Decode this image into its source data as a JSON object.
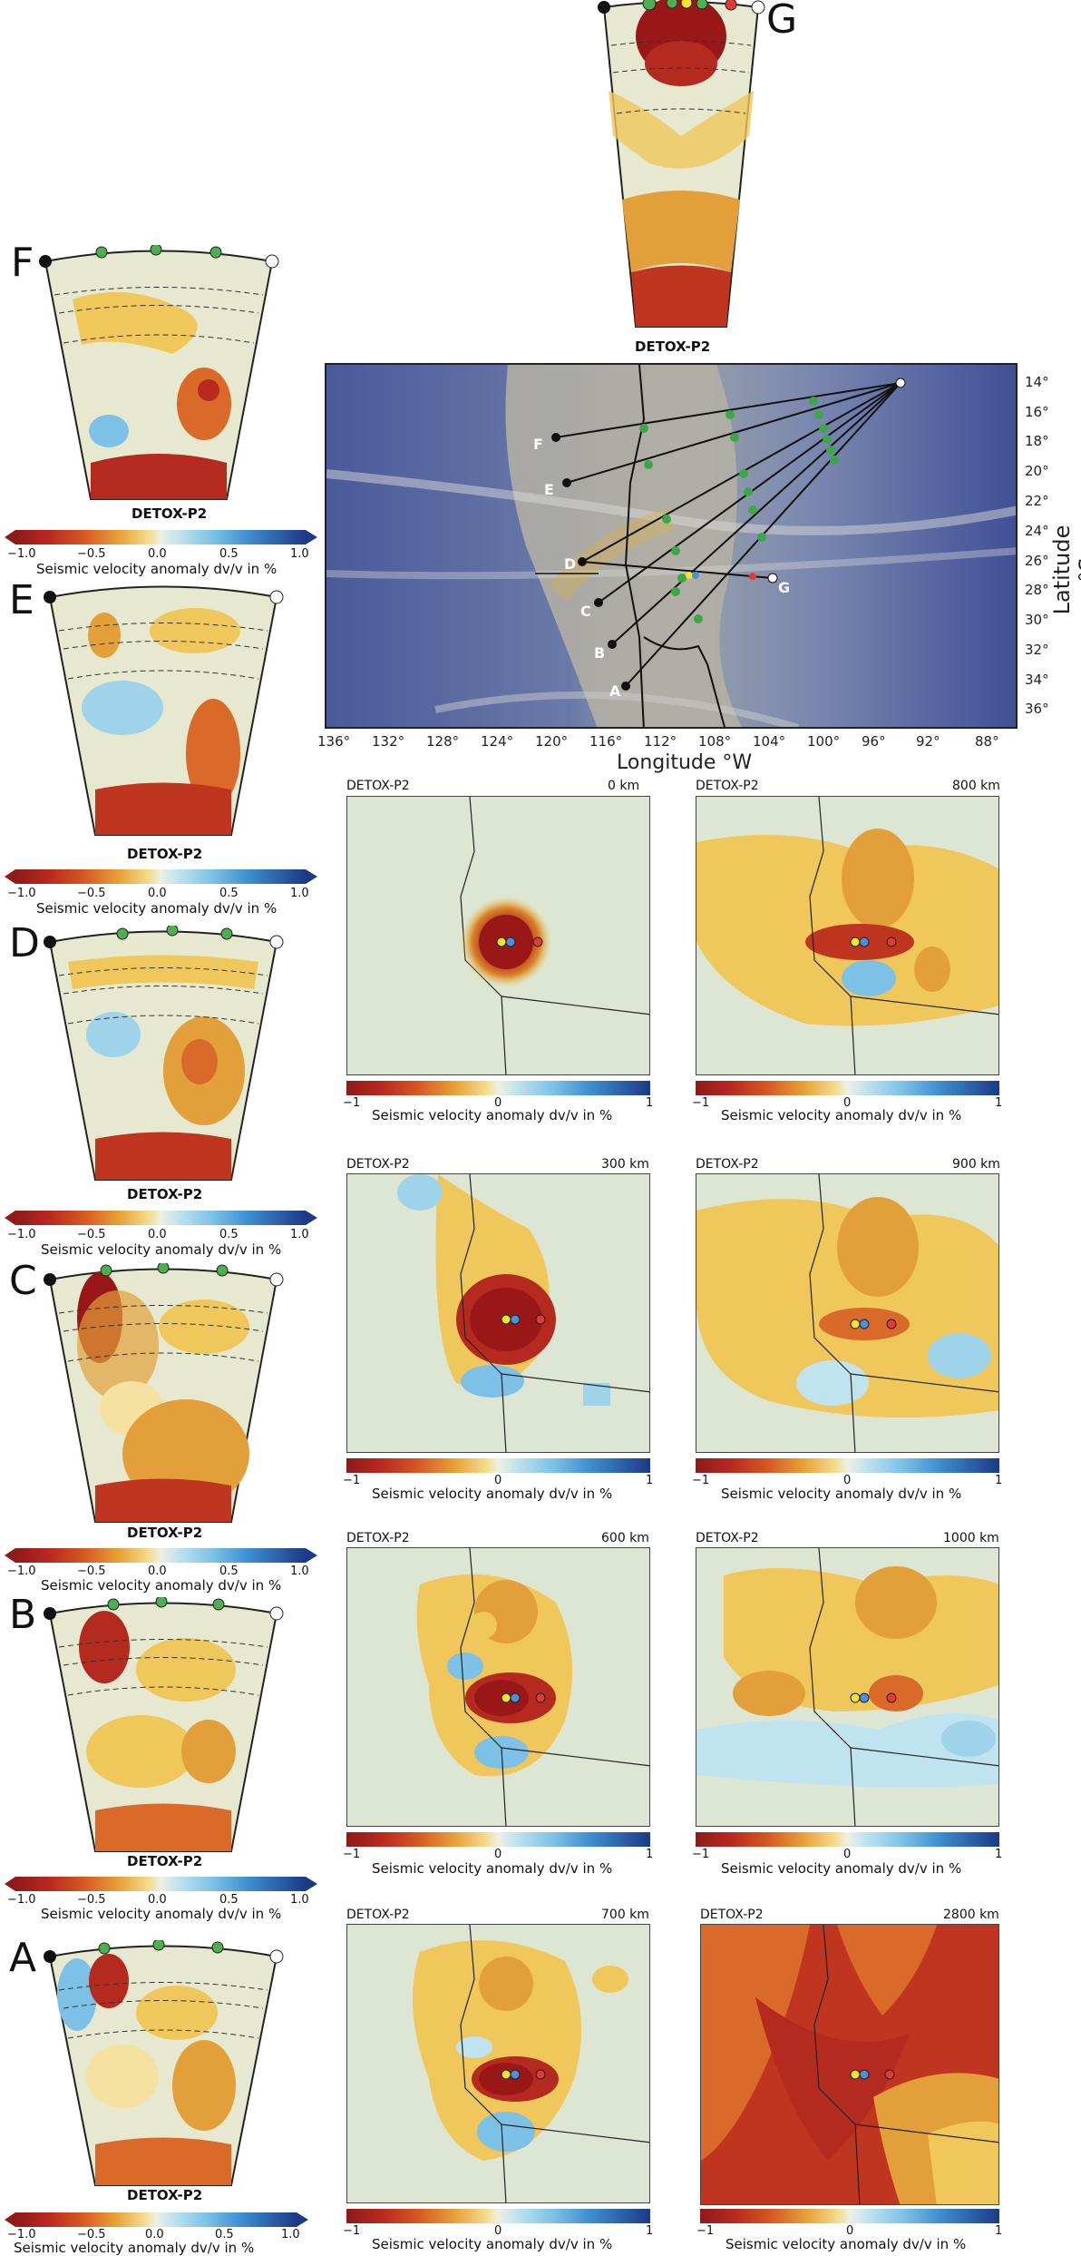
{
  "cross_sections": {
    "model": "DETOX-P2",
    "panels": [
      {
        "letter": "G"
      },
      {
        "letter": "F"
      },
      {
        "letter": "E"
      },
      {
        "letter": "D"
      },
      {
        "letter": "C"
      },
      {
        "letter": "B"
      },
      {
        "letter": "A"
      }
    ],
    "colorbar": {
      "ticks": [
        "−1.0",
        "−0.5",
        "0.0",
        "0.5",
        "1.0"
      ],
      "label": "Seismic velocity anomaly dv/v in %"
    }
  },
  "map": {
    "latitude_label": "Latitude °S",
    "longitude_label": "Longitude °W",
    "lat_ticks": [
      "14°",
      "16°",
      "18°",
      "20°",
      "22°",
      "24°",
      "26°",
      "28°",
      "30°",
      "32°",
      "34°",
      "36°"
    ],
    "lon_ticks": [
      "136°",
      "132°",
      "128°",
      "124°",
      "120°",
      "116°",
      "112°",
      "108°",
      "104°",
      "100°",
      "96°",
      "92°",
      "88°"
    ],
    "point_labels": [
      "F",
      "E",
      "D",
      "C",
      "B",
      "A",
      "G"
    ]
  },
  "depth_slices": {
    "model": "DETOX-P2",
    "slices": [
      {
        "depth": "0 km"
      },
      {
        "depth": "800 km"
      },
      {
        "depth": "300 km"
      },
      {
        "depth": "900 km"
      },
      {
        "depth": "600 km"
      },
      {
        "depth": "1000 km"
      },
      {
        "depth": "700 km"
      },
      {
        "depth": "2800 km"
      }
    ],
    "colorbar": {
      "ticks": [
        "−1",
        "0",
        "1"
      ],
      "label": "Seismic velocity anomaly dv/v in %"
    }
  },
  "colors": {
    "dark_red": "#9e1b1b",
    "red": "#c8341f",
    "orange": "#d9852a",
    "yellow": "#f0c75a",
    "pale_yellow": "#f5e2a0",
    "neutral": "#dde6d2",
    "light_blue": "#9fd3ea",
    "blue": "#3f8fd0",
    "dark_blue": "#1b3f8f",
    "marker_green": "#4caf50",
    "marker_yellow": "#f7e32d",
    "marker_blue": "#4a90e2",
    "marker_red": "#e53935"
  }
}
